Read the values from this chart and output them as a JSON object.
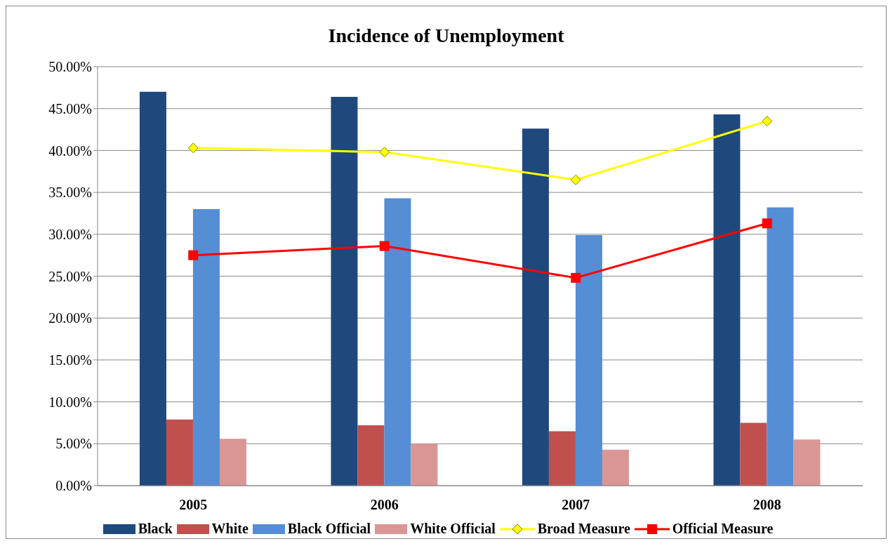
{
  "chart_data": {
    "type": "bar",
    "title": "Incidence of Unemployment",
    "categories": [
      "2005",
      "2006",
      "2007",
      "2008"
    ],
    "series": [
      {
        "name": "Black",
        "color": "#1f497d",
        "values": [
          47.0,
          46.4,
          42.6,
          44.3
        ]
      },
      {
        "name": "White",
        "color": "#c0504d",
        "values": [
          7.9,
          7.2,
          6.5,
          7.5
        ]
      },
      {
        "name": "Black Official",
        "color": "#558ed5",
        "values": [
          33.0,
          34.3,
          29.9,
          33.2
        ]
      },
      {
        "name": "White Official",
        "color": "#d99694",
        "values": [
          5.6,
          5.0,
          4.3,
          5.5
        ]
      },
      {
        "name": "Broad Measure",
        "type": "line",
        "color": "#ffff00",
        "marker": "diamond",
        "values": [
          40.3,
          39.8,
          36.5,
          43.5
        ]
      },
      {
        "name": "Official Measure",
        "type": "line",
        "color": "#ff0000",
        "marker": "square",
        "values": [
          27.5,
          28.6,
          24.8,
          31.3
        ]
      }
    ],
    "ylim": [
      0,
      50
    ],
    "yticks": [
      {
        "value": 0,
        "label": "0.00%"
      },
      {
        "value": 5,
        "label": "5.00%"
      },
      {
        "value": 10,
        "label": "10.00%"
      },
      {
        "value": 15,
        "label": "15.00%"
      },
      {
        "value": 20,
        "label": "20.00%"
      },
      {
        "value": 25,
        "label": "25.00%"
      },
      {
        "value": 30,
        "label": "30.00%"
      },
      {
        "value": 35,
        "label": "35.00%"
      },
      {
        "value": 40,
        "label": "40.00%"
      },
      {
        "value": 45,
        "label": "45.00%"
      },
      {
        "value": 50,
        "label": "50.00%"
      }
    ],
    "grid": "y",
    "legend": "bottom"
  }
}
